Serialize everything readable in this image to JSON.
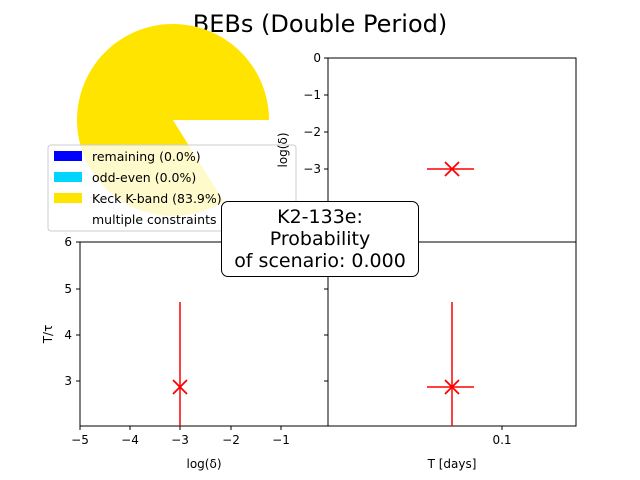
{
  "title": "BEBs (Double Period)",
  "annotation": {
    "object": "K2-133e:",
    "line2": "Probability",
    "line3": "of scenario: 0.000"
  },
  "colors": {
    "remaining": "#0000ff",
    "odd_even": "#00d5ff",
    "keck": "#ffe400",
    "marker": "#ff0000"
  },
  "chart_data": [
    {
      "type": "pie",
      "slices": [
        {
          "label": "remaining (0.0%)",
          "value": 0.0,
          "color": "#0000ff"
        },
        {
          "label": "odd-even (0.0%)",
          "value": 0.0,
          "color": "#00d5ff"
        },
        {
          "label": "Keck K-band (83.9%)",
          "value": 83.9,
          "color": "#ffe400"
        },
        {
          "label": "multiple constraints (16.1%)",
          "value": 16.1,
          "color": "#ffffff"
        }
      ],
      "legend": "left"
    },
    {
      "type": "scatter",
      "panel": "top-right",
      "xlabel": "",
      "ylabel": "log(δ)",
      "ylim": [
        -4.1,
        0
      ],
      "yticks": [
        "0",
        "−1",
        "−2",
        "−3"
      ],
      "points": [
        {
          "x": 0.09,
          "y": -3.0,
          "xerr": 0.012,
          "yerr": 0
        }
      ]
    },
    {
      "type": "scatter",
      "panel": "bottom-left",
      "xlabel": "log(δ)",
      "ylabel": "T/τ",
      "xlim": [
        -5,
        0
      ],
      "ylim": [
        2,
        6
      ],
      "xticks": [
        "−5",
        "−4",
        "−3",
        "−2",
        "−1"
      ],
      "yticks": [
        "3",
        "4",
        "5",
        "6"
      ],
      "points": [
        {
          "x": -3.0,
          "y": 2.87,
          "xerr": 0,
          "yerr": 1.85
        }
      ]
    },
    {
      "type": "scatter",
      "panel": "bottom-right",
      "xlabel": "T [days]",
      "ylabel": "",
      "ylim": [
        2,
        6
      ],
      "xticks": [
        "0.1"
      ],
      "points": [
        {
          "x": 0.09,
          "y": 2.87,
          "xerr": 0.012,
          "yerr": 1.85
        }
      ]
    }
  ]
}
